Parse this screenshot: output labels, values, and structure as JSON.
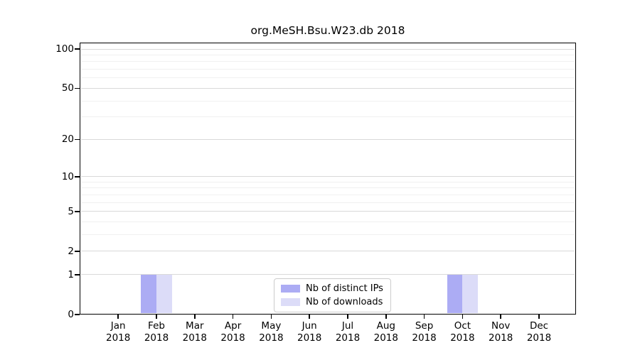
{
  "chart_data": {
    "type": "bar",
    "title": "org.MeSH.Bsu.W23.db 2018",
    "categories": [
      "Jan 2018",
      "Feb 2018",
      "Mar 2018",
      "Apr 2018",
      "May 2018",
      "Jun 2018",
      "Jul 2018",
      "Aug 2018",
      "Sep 2018",
      "Oct 2018",
      "Nov 2018",
      "Dec 2018"
    ],
    "series": [
      {
        "name": "Nb of distinct IPs",
        "color": "#acacf4",
        "values": [
          0,
          1,
          0,
          0,
          0,
          0,
          0,
          0,
          0,
          1,
          0,
          0
        ]
      },
      {
        "name": "Nb of downloads",
        "color": "#dcdcf8",
        "values": [
          0,
          1,
          0,
          0,
          0,
          0,
          0,
          0,
          0,
          1,
          0,
          0
        ]
      }
    ],
    "xlabel": "",
    "ylabel": "",
    "yscale": "log1p",
    "ylim": [
      0,
      112
    ],
    "y_major_ticks": [
      0,
      1,
      2,
      5,
      10,
      20,
      50,
      100
    ],
    "y_minor_gridlines": [
      3,
      4,
      6,
      7,
      8,
      9,
      30,
      40,
      60,
      70,
      80,
      90
    ],
    "grid": true,
    "legend_position": "lower center",
    "colors": {
      "grid_major": "#d9d9d9",
      "grid_minor": "#f0f0f0",
      "axis": "#000000",
      "legend_border": "#cccccc",
      "text": "#000000"
    }
  }
}
